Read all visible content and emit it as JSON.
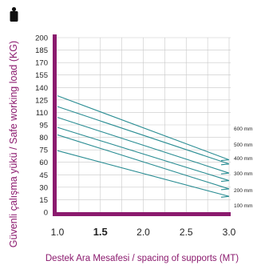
{
  "chart_data": {
    "type": "line",
    "title": "",
    "ylabel": "Güvenli çalışma yükü / Safe working load (KG)",
    "xlabel": "Destek Ara Mesafesi / spacing of supports (MT)",
    "xlim": [
      1.0,
      3.0
    ],
    "ylim": [
      0,
      200
    ],
    "x_ticks": [
      "1.0",
      "1.5",
      "2.0",
      "2.5",
      "3.0"
    ],
    "x_tick_values": [
      1.0,
      1.5,
      2.0,
      2.5,
      3.0
    ],
    "x_tick_bold": "1.5",
    "y_ticks": [
      "0",
      "15",
      "30",
      "45",
      "60",
      "75",
      "80",
      "95",
      "110",
      "125",
      "140",
      "155",
      "170",
      "185",
      "200"
    ],
    "grid": true,
    "colors": {
      "axis": "#8b1a6e",
      "line": "#2a8d93",
      "grid": "#c8c8c8",
      "plot_bg": "#ffffff"
    },
    "icon": "weight-icon",
    "series": [
      {
        "name": "600 mm",
        "x": [
          1.0,
          3.0
        ],
        "y": [
          130,
          63
        ]
      },
      {
        "name": "500 mm",
        "x": [
          1.0,
          3.0
        ],
        "y": [
          117,
          58
        ]
      },
      {
        "name": "400 mm",
        "x": [
          1.0,
          3.0
        ],
        "y": [
          104,
          47
        ]
      },
      {
        "name": "300 mm",
        "x": [
          1.0,
          3.0
        ],
        "y": [
          92,
          38
        ]
      },
      {
        "name": "200 mm",
        "x": [
          1.0,
          3.0
        ],
        "y": [
          83,
          28
        ]
      },
      {
        "name": "100 mm",
        "x": [
          1.0,
          3.0
        ],
        "y": [
          74,
          19
        ]
      }
    ]
  }
}
